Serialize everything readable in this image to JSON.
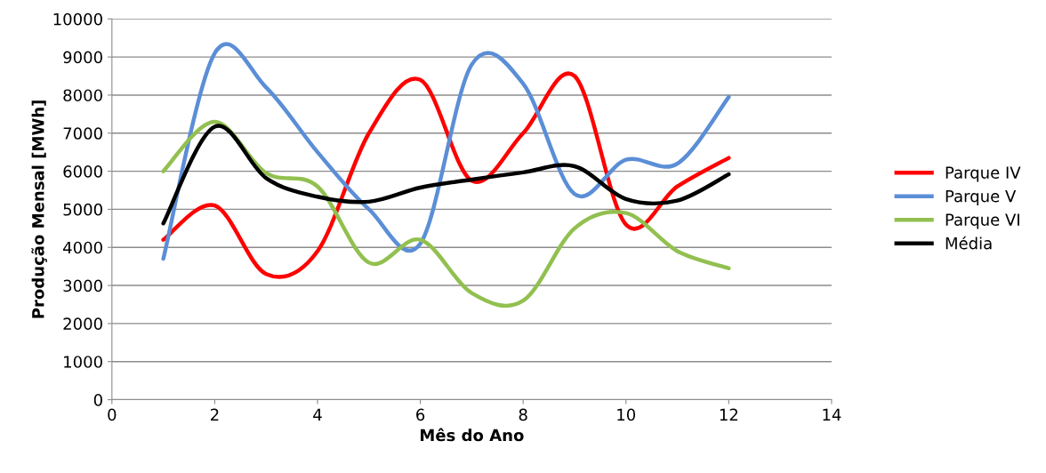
{
  "chart_data": {
    "type": "line",
    "xlabel": "Mês do Ano",
    "ylabel": "Produção Mensal [MWh]",
    "x": [
      1,
      2,
      3,
      4,
      5,
      6,
      7,
      8,
      9,
      10,
      11,
      12
    ],
    "xlim": [
      0,
      14
    ],
    "xticks": [
      0,
      2,
      4,
      6,
      8,
      10,
      12,
      14
    ],
    "ylim": [
      0,
      10000
    ],
    "yticks": [
      0,
      1000,
      2000,
      3000,
      4000,
      5000,
      6000,
      7000,
      8000,
      9000,
      10000
    ],
    "grid": "y",
    "legend": "right",
    "marker": "none",
    "line_style": "solid",
    "series": [
      {
        "name": "Parque IV",
        "color": "#ff0000",
        "values": [
          4200,
          5100,
          3300,
          3900,
          7000,
          8400,
          5750,
          7000,
          8500,
          4600,
          5600,
          6350
        ]
      },
      {
        "name": "Parque V",
        "color": "#5b8ed6",
        "values": [
          3700,
          9100,
          8200,
          6500,
          5000,
          4100,
          8800,
          8300,
          5400,
          6300,
          6200,
          7950
        ]
      },
      {
        "name": "Parque VI",
        "color": "#92c050",
        "values": [
          6000,
          7300,
          5950,
          5600,
          3600,
          4200,
          2800,
          2600,
          4500,
          4900,
          3900,
          3450
        ]
      },
      {
        "name": "Média",
        "color": "#000000",
        "values": [
          4630,
          7170,
          5820,
          5330,
          5200,
          5570,
          5780,
          5970,
          6130,
          5270,
          5230,
          5920
        ]
      }
    ]
  }
}
